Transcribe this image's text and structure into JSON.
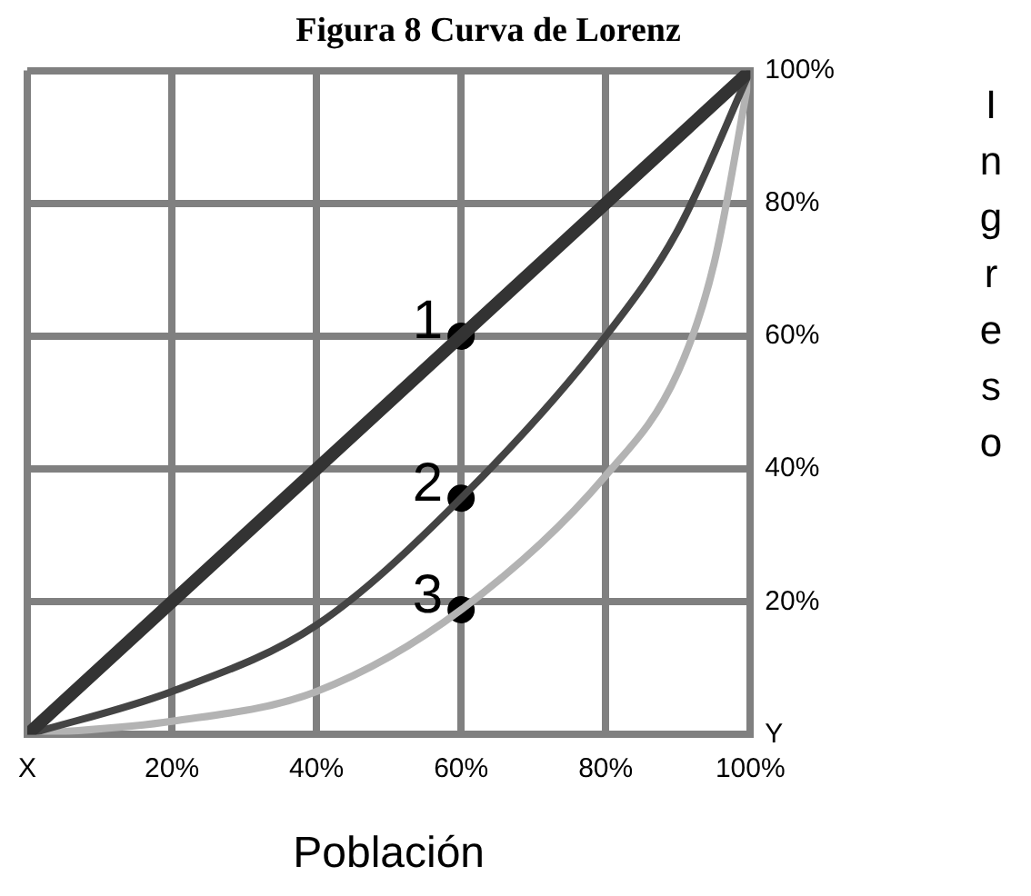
{
  "chart_data": {
    "type": "line",
    "title": "Figura 8 Curva de Lorenz",
    "xlabel": "Población",
    "ylabel": "Ingreso",
    "xlim": [
      0,
      100
    ],
    "ylim": [
      0,
      100
    ],
    "xticks": [
      {
        "value": 0,
        "label": "X"
      },
      {
        "value": 20,
        "label": "20%"
      },
      {
        "value": 40,
        "label": "40%"
      },
      {
        "value": 60,
        "label": "60%"
      },
      {
        "value": 80,
        "label": "80%"
      },
      {
        "value": 100,
        "label": "100%"
      }
    ],
    "yticks": [
      {
        "value": 0,
        "label": "Y"
      },
      {
        "value": 20,
        "label": "20%"
      },
      {
        "value": 40,
        "label": "40%"
      },
      {
        "value": 60,
        "label": "60%"
      },
      {
        "value": 80,
        "label": "80%"
      },
      {
        "value": 100,
        "label": "100%"
      }
    ],
    "grid": true,
    "legend": false,
    "marker": "none",
    "line_style": "solid",
    "series": [
      {
        "color": "#333333",
        "x": [
          0,
          100
        ],
        "values": [
          0,
          100
        ]
      },
      {
        "color": "#444444",
        "x": [
          0,
          20,
          40,
          60,
          80,
          90,
          100
        ],
        "values": [
          0,
          6.5,
          16.5,
          35.6,
          60,
          76,
          100
        ]
      },
      {
        "color": "#b3b3b3",
        "x": [
          0,
          20,
          40,
          60,
          80,
          90,
          95,
          100
        ],
        "values": [
          0,
          2,
          6.5,
          18.8,
          39,
          54.6,
          71,
          100
        ]
      },
      {
        "type": "scatter",
        "marker": "circle",
        "color": "#000000",
        "x": [
          60,
          60,
          60
        ],
        "values": [
          60,
          35.6,
          18.8
        ]
      }
    ],
    "annotations": [
      "1",
      "2",
      "3"
    ]
  }
}
